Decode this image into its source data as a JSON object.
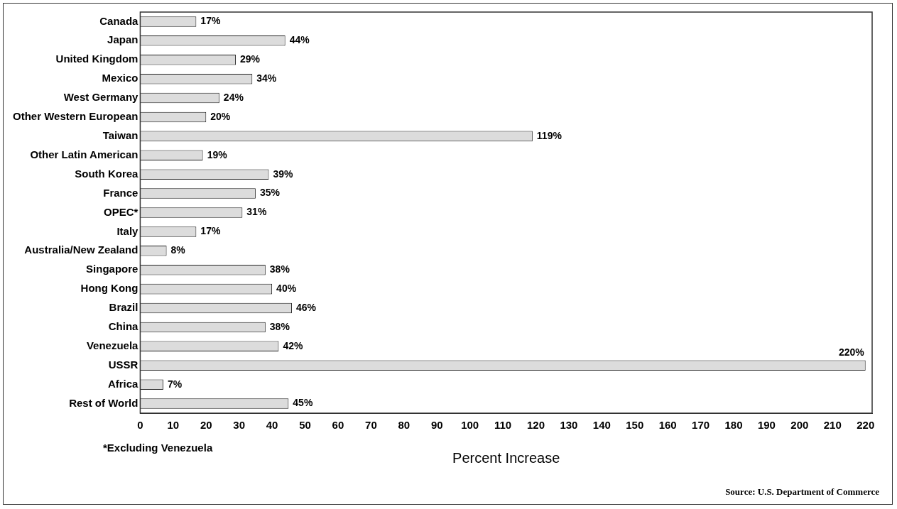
{
  "chart_data": {
    "type": "bar",
    "orientation": "horizontal",
    "xlabel": "Percent Increase",
    "categories": [
      "Canada",
      "Japan",
      "United Kingdom",
      "Mexico",
      "West Germany",
      "Other Western European",
      "Taiwan",
      "Other Latin American",
      "South Korea",
      "France",
      "OPEC*",
      "Italy",
      "Australia/New Zealand",
      "Singapore",
      "Hong Kong",
      "Brazil",
      "China",
      "Venezuela",
      "USSR",
      "Africa",
      "Rest of World"
    ],
    "values": [
      17,
      44,
      29,
      34,
      24,
      20,
      119,
      19,
      39,
      35,
      31,
      17,
      8,
      38,
      40,
      46,
      38,
      42,
      220,
      7,
      45
    ],
    "value_labels": [
      "17%",
      "44%",
      "29%",
      "34%",
      "24%",
      "20%",
      "119%",
      "19%",
      "39%",
      "35%",
      "31%",
      "17%",
      "8%",
      "38%",
      "40%",
      "46%",
      "38%",
      "42%",
      "220%",
      "7%",
      "45%"
    ],
    "color": "#dcdcdc",
    "xlim": [
      0,
      222
    ],
    "xticks": [
      0,
      10,
      20,
      30,
      40,
      50,
      60,
      70,
      80,
      90,
      100,
      110,
      120,
      130,
      140,
      150,
      160,
      170,
      180,
      190,
      200,
      210,
      220
    ],
    "grid": false,
    "legend": false,
    "annotations": [
      "*Excluding Venezuela",
      "Source: U.S. Department of Commerce"
    ]
  }
}
